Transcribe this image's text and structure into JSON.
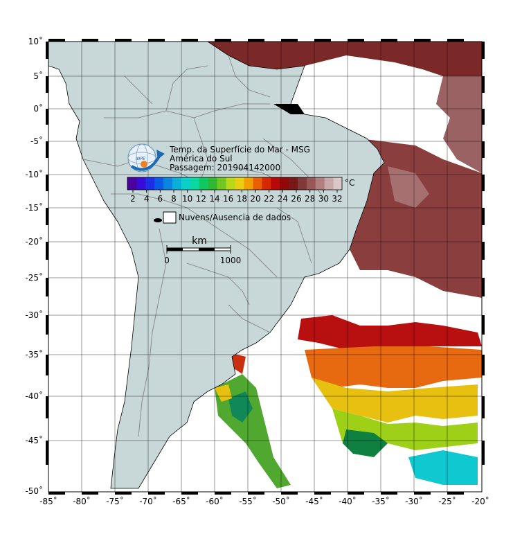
{
  "title": {
    "line1": "Temp. da Superfície do Mar - MSG",
    "line2": "América do Sul",
    "line3": "Passagem: 201904142000"
  },
  "logo_text": "INPE",
  "colorbar": {
    "unit": "°C",
    "ticks": [
      "2",
      "4",
      "6",
      "8",
      "10",
      "12",
      "14",
      "16",
      "18",
      "20",
      "22",
      "24",
      "26",
      "28",
      "30",
      "32"
    ],
    "colors": [
      "#4b00a0",
      "#3a0ad8",
      "#1c2ee8",
      "#0a5ae8",
      "#0a86e0",
      "#0ab0d8",
      "#0ad0c8",
      "#0ad8a0",
      "#10c860",
      "#30b830",
      "#70c820",
      "#b8d818",
      "#e8d010",
      "#f0a000",
      "#e86000",
      "#d82800",
      "#b80808",
      "#900808",
      "#781818",
      "#803838",
      "#985858",
      "#b08080",
      "#c8a8a8",
      "#d8c8c8"
    ]
  },
  "no_data_legend": "Nuvens/Ausencia de dados",
  "scale_bar": {
    "unit": "km",
    "start": "0",
    "end": "1000"
  },
  "longitude_labels": [
    "-85˚",
    "-80˚",
    "-75˚",
    "-70˚",
    "-65˚",
    "-60˚",
    "-55˚",
    "-50˚",
    "-45˚",
    "-40˚",
    "-35˚",
    "-30˚",
    "-25˚",
    "-20˚"
  ],
  "latitude_labels": [
    "10˚",
    "5˚",
    "0˚",
    "-5˚",
    "-10˚",
    "-15˚",
    "-20˚",
    "-25˚",
    "-30˚",
    "-35˚",
    "-40˚",
    "-45˚",
    "-50˚"
  ],
  "colors": {
    "land": "#c8d8d8",
    "border": "#808080",
    "lake": "#000000",
    "frame_black": "#000000",
    "sst_warm_north": "#7a2a2a",
    "sst_pink": "#b08080"
  }
}
